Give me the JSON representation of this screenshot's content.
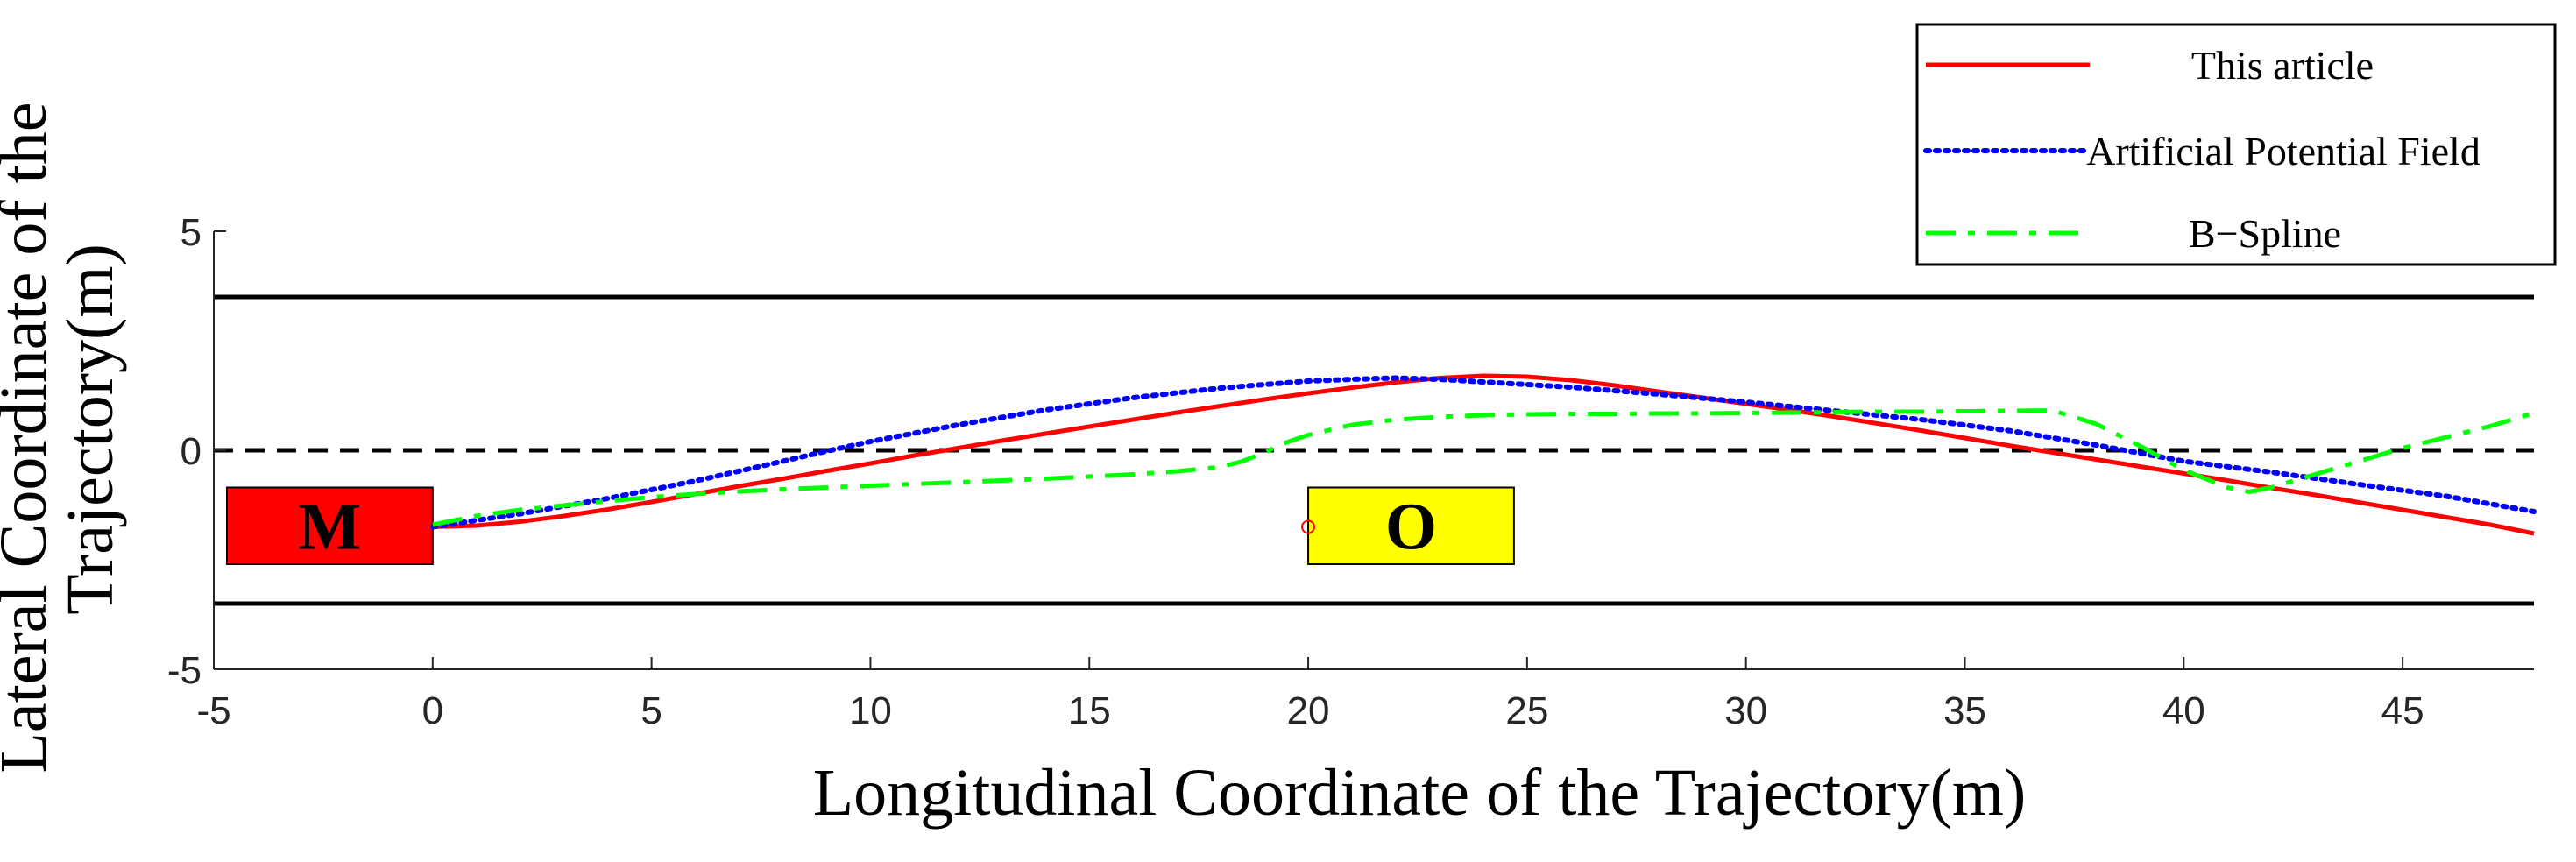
{
  "chart_data": {
    "type": "line",
    "title": "",
    "xlabel": "Longitudinal Coordinate of the Trajectory(m)",
    "ylabel": "Lateral Coordinate of the Trajectory(m)",
    "ylabel_lines": [
      "Lateral Coordinate of the",
      "Trajectory(m)"
    ],
    "xlim": [
      -5,
      48
    ],
    "ylim": [
      -5,
      5
    ],
    "xticks": [
      -5,
      0,
      5,
      10,
      15,
      20,
      25,
      30,
      35,
      40,
      45
    ],
    "yticks": [
      -5,
      0,
      5
    ],
    "grid": false,
    "legend_position": "top-right, outside plot",
    "lane_lines": [
      {
        "y": 3.5,
        "style": "solid",
        "color": "#000000"
      },
      {
        "y": 0,
        "style": "dashed",
        "color": "#000000"
      },
      {
        "y": -3.5,
        "style": "solid",
        "color": "#000000"
      }
    ],
    "vehicles": [
      {
        "label": "M",
        "x0": -4.7,
        "x1": 0,
        "y0": -2.6,
        "y1": -0.85,
        "color": "#ff0000"
      },
      {
        "label": "O",
        "x0": 20,
        "x1": 24.7,
        "y0": -2.6,
        "y1": -0.85,
        "color": "#ffff00"
      }
    ],
    "marker": {
      "x": 20,
      "y": -1.75,
      "color": "#ff0000"
    },
    "series": [
      {
        "name": "This article",
        "color": "#ff0000",
        "style": "solid",
        "x": [
          0,
          1,
          2,
          3,
          4,
          5,
          6,
          7,
          8,
          9,
          10,
          11,
          12,
          13,
          14,
          15,
          16,
          17,
          18,
          19,
          20,
          21,
          22,
          23,
          24,
          25,
          26,
          27,
          28,
          29,
          30,
          31,
          32,
          33,
          34,
          35,
          36,
          37,
          38,
          39,
          40,
          41,
          42,
          43,
          44,
          45,
          46,
          47,
          48
        ],
        "y": [
          -1.75,
          -1.72,
          -1.63,
          -1.5,
          -1.35,
          -1.18,
          -1.0,
          -0.82,
          -0.65,
          -0.47,
          -0.3,
          -0.12,
          0.05,
          0.22,
          0.38,
          0.54,
          0.7,
          0.86,
          1.01,
          1.16,
          1.3,
          1.43,
          1.55,
          1.65,
          1.7,
          1.68,
          1.6,
          1.48,
          1.34,
          1.2,
          1.06,
          0.92,
          0.77,
          0.61,
          0.45,
          0.28,
          0.11,
          -0.05,
          -0.21,
          -0.37,
          -0.53,
          -0.69,
          -0.86,
          -1.02,
          -1.19,
          -1.36,
          -1.53,
          -1.7,
          -1.9
        ]
      },
      {
        "name": "Artificial Potential Field",
        "color": "#0000ff",
        "style": "dotted",
        "x": [
          0,
          2,
          4,
          6,
          8,
          9,
          10,
          12,
          14,
          16,
          18,
          20,
          21,
          22,
          23,
          24,
          25,
          26,
          28,
          30,
          32,
          34,
          36,
          38,
          40,
          42,
          44,
          46,
          48
        ],
        "y": [
          -1.75,
          -1.45,
          -1.1,
          -0.7,
          -0.25,
          -0.02,
          0.2,
          0.58,
          0.92,
          1.2,
          1.42,
          1.58,
          1.62,
          1.65,
          1.62,
          1.56,
          1.5,
          1.44,
          1.28,
          1.1,
          0.9,
          0.7,
          0.45,
          0.12,
          -0.25,
          -0.5,
          -0.78,
          -1.05,
          -1.4
        ]
      },
      {
        "name": "B−Spline",
        "color": "#00ff00",
        "style": "dashdot",
        "x": [
          0,
          1,
          2,
          3,
          4,
          5,
          6,
          7,
          8,
          9,
          10,
          11,
          12,
          13,
          14,
          15,
          16,
          17,
          18,
          18.5,
          19,
          19.5,
          20,
          21,
          22,
          23,
          24,
          25,
          26,
          27,
          28,
          29,
          30,
          31,
          32,
          33,
          34,
          35,
          36,
          37,
          38,
          39,
          40,
          41,
          41.5,
          42,
          43,
          44,
          45,
          46,
          47,
          48
        ],
        "y": [
          -1.7,
          -1.5,
          -1.36,
          -1.26,
          -1.16,
          -1.07,
          -1.0,
          -0.94,
          -0.89,
          -0.85,
          -0.81,
          -0.77,
          -0.73,
          -0.69,
          -0.65,
          -0.6,
          -0.55,
          -0.48,
          -0.38,
          -0.25,
          -0.05,
          0.18,
          0.35,
          0.58,
          0.7,
          0.76,
          0.8,
          0.82,
          0.83,
          0.83,
          0.84,
          0.84,
          0.85,
          0.86,
          0.87,
          0.88,
          0.88,
          0.89,
          0.9,
          0.91,
          0.6,
          0.1,
          -0.45,
          -0.85,
          -0.95,
          -0.85,
          -0.55,
          -0.25,
          0.05,
          0.3,
          0.55,
          0.85
        ]
      }
    ]
  }
}
